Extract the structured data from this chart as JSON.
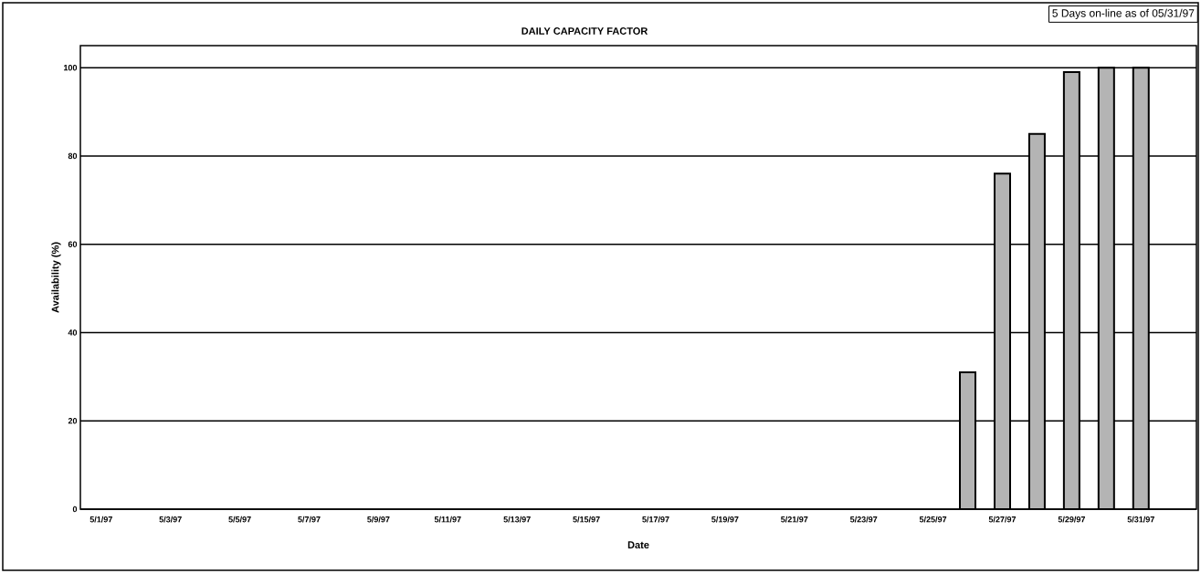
{
  "chart_data": {
    "type": "bar",
    "title": "DAILY CAPACITY FACTOR",
    "xlabel": "Date",
    "ylabel": "Availability (%)",
    "annotations": [
      "5 Days on-line as of 05/31/97"
    ],
    "categories": [
      "5/1/97",
      null,
      "5/3/97",
      null,
      "5/5/97",
      null,
      "5/7/97",
      null,
      "5/9/97",
      null,
      "5/11/97",
      null,
      "5/13/97",
      null,
      "5/15/97",
      null,
      "5/17/97",
      null,
      "5/19/97",
      null,
      "5/21/97",
      null,
      "5/23/97",
      null,
      "5/25/97",
      null,
      "5/27/97",
      null,
      "5/29/97",
      null,
      "5/31/97",
      null
    ],
    "values": [
      null,
      null,
      null,
      null,
      null,
      null,
      null,
      null,
      null,
      null,
      null,
      null,
      null,
      null,
      null,
      null,
      null,
      null,
      null,
      null,
      null,
      null,
      null,
      null,
      null,
      31,
      76,
      85,
      99,
      100,
      100,
      null
    ],
    "color": "#b4b4b4",
    "ylim": [
      0,
      105
    ],
    "yticks": [
      0,
      20,
      40,
      60,
      80,
      100
    ],
    "grid": "y"
  }
}
